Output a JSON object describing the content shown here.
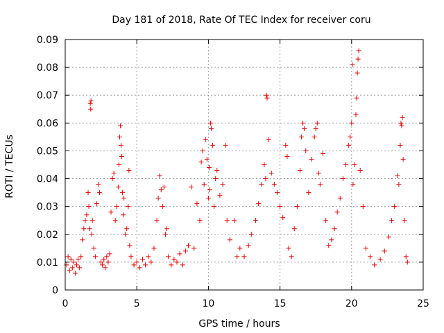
{
  "chart_data": {
    "type": "scatter",
    "title": "Day 181 of 2018, Rate Of TEC Index for receiver coru",
    "xlabel": "GPS time / hours",
    "ylabel": "ROTI / TECUs",
    "xlim": [
      0,
      25
    ],
    "ylim": [
      0,
      0.09
    ],
    "xticks": [
      0,
      5,
      10,
      15,
      20,
      25
    ],
    "xtick_labels": [
      "0",
      "5",
      "10",
      "15",
      "20",
      "25"
    ],
    "yticks": [
      0,
      0.01,
      0.02,
      0.03,
      0.04,
      0.05,
      0.06,
      0.07,
      0.08,
      0.09
    ],
    "ytick_labels": [
      "0",
      "0.01",
      "0.02",
      "0.03",
      "0.04",
      "0.05",
      "0.06",
      "0.07",
      "0.08",
      "0.09"
    ],
    "grid": true,
    "marker": "+",
    "color": "#e60000",
    "series": [
      {
        "name": "ROTI",
        "points": [
          [
            0.1,
            0.009
          ],
          [
            0.2,
            0.012
          ],
          [
            0.3,
            0.007
          ],
          [
            0.4,
            0.011
          ],
          [
            0.5,
            0.008
          ],
          [
            0.6,
            0.01
          ],
          [
            0.7,
            0.006
          ],
          [
            0.8,
            0.009
          ],
          [
            0.9,
            0.011
          ],
          [
            1.0,
            0.008
          ],
          [
            1.1,
            0.012
          ],
          [
            1.2,
            0.018
          ],
          [
            1.3,
            0.022
          ],
          [
            1.4,
            0.025
          ],
          [
            1.5,
            0.027
          ],
          [
            1.6,
            0.035
          ],
          [
            1.65,
            0.03
          ],
          [
            1.7,
            0.022
          ],
          [
            1.75,
            0.067
          ],
          [
            1.78,
            0.065
          ],
          [
            1.8,
            0.068
          ],
          [
            1.85,
            0.02
          ],
          [
            1.9,
            0.025
          ],
          [
            2.0,
            0.015
          ],
          [
            2.1,
            0.012
          ],
          [
            2.2,
            0.031
          ],
          [
            2.3,
            0.038
          ],
          [
            2.4,
            0.035
          ],
          [
            2.5,
            0.01
          ],
          [
            2.6,
            0.009
          ],
          [
            2.7,
            0.011
          ],
          [
            2.8,
            0.008
          ],
          [
            2.9,
            0.012
          ],
          [
            3.0,
            0.01
          ],
          [
            3.1,
            0.013
          ],
          [
            3.2,
            0.028
          ],
          [
            3.3,
            0.04
          ],
          [
            3.4,
            0.042
          ],
          [
            3.5,
            0.025
          ],
          [
            3.6,
            0.03
          ],
          [
            3.7,
            0.037
          ],
          [
            3.75,
            0.045
          ],
          [
            3.8,
            0.055
          ],
          [
            3.85,
            0.059
          ],
          [
            3.9,
            0.052
          ],
          [
            3.95,
            0.048
          ],
          [
            4.0,
            0.035
          ],
          [
            4.05,
            0.027
          ],
          [
            4.1,
            0.033
          ],
          [
            4.2,
            0.02
          ],
          [
            4.3,
            0.022
          ],
          [
            4.4,
            0.03
          ],
          [
            4.45,
            0.043
          ],
          [
            4.5,
            0.016
          ],
          [
            4.6,
            0.012
          ],
          [
            4.8,
            0.009
          ],
          [
            5.0,
            0.01
          ],
          [
            5.2,
            0.008
          ],
          [
            5.4,
            0.011
          ],
          [
            5.6,
            0.009
          ],
          [
            5.8,
            0.012
          ],
          [
            6.0,
            0.01
          ],
          [
            6.2,
            0.015
          ],
          [
            6.4,
            0.025
          ],
          [
            6.5,
            0.033
          ],
          [
            6.6,
            0.041
          ],
          [
            6.7,
            0.036
          ],
          [
            6.8,
            0.03
          ],
          [
            6.9,
            0.037
          ],
          [
            7.0,
            0.02
          ],
          [
            7.1,
            0.022
          ],
          [
            7.2,
            0.012
          ],
          [
            7.4,
            0.009
          ],
          [
            7.6,
            0.011
          ],
          [
            7.8,
            0.01
          ],
          [
            8.0,
            0.013
          ],
          [
            8.2,
            0.009
          ],
          [
            8.4,
            0.014
          ],
          [
            8.6,
            0.016
          ],
          [
            8.8,
            0.037
          ],
          [
            9.0,
            0.015
          ],
          [
            9.2,
            0.031
          ],
          [
            9.4,
            0.025
          ],
          [
            9.5,
            0.046
          ],
          [
            9.6,
            0.05
          ],
          [
            9.7,
            0.038
          ],
          [
            9.8,
            0.054
          ],
          [
            9.9,
            0.047
          ],
          [
            10.0,
            0.033
          ],
          [
            10.05,
            0.044
          ],
          [
            10.1,
            0.036
          ],
          [
            10.15,
            0.06
          ],
          [
            10.2,
            0.058
          ],
          [
            10.3,
            0.052
          ],
          [
            10.4,
            0.03
          ],
          [
            10.5,
            0.04
          ],
          [
            10.6,
            0.043
          ],
          [
            10.8,
            0.034
          ],
          [
            11.0,
            0.038
          ],
          [
            11.2,
            0.052
          ],
          [
            11.3,
            0.025
          ],
          [
            11.5,
            0.018
          ],
          [
            11.8,
            0.025
          ],
          [
            12.0,
            0.012
          ],
          [
            12.2,
            0.015
          ],
          [
            12.5,
            0.012
          ],
          [
            12.8,
            0.016
          ],
          [
            13.0,
            0.02
          ],
          [
            13.3,
            0.025
          ],
          [
            13.5,
            0.031
          ],
          [
            13.7,
            0.038
          ],
          [
            13.9,
            0.045
          ],
          [
            14.0,
            0.04
          ],
          [
            14.05,
            0.07
          ],
          [
            14.1,
            0.069
          ],
          [
            14.2,
            0.054
          ],
          [
            14.4,
            0.042
          ],
          [
            14.6,
            0.038
          ],
          [
            14.8,
            0.035
          ],
          [
            15.0,
            0.03
          ],
          [
            15.2,
            0.026
          ],
          [
            15.4,
            0.052
          ],
          [
            15.5,
            0.048
          ],
          [
            15.6,
            0.015
          ],
          [
            15.8,
            0.012
          ],
          [
            16.0,
            0.022
          ],
          [
            16.2,
            0.03
          ],
          [
            16.4,
            0.043
          ],
          [
            16.5,
            0.055
          ],
          [
            16.6,
            0.06
          ],
          [
            16.7,
            0.058
          ],
          [
            16.8,
            0.05
          ],
          [
            17.0,
            0.035
          ],
          [
            17.2,
            0.047
          ],
          [
            17.4,
            0.055
          ],
          [
            17.5,
            0.058
          ],
          [
            17.6,
            0.06
          ],
          [
            17.7,
            0.042
          ],
          [
            17.8,
            0.038
          ],
          [
            18.0,
            0.049
          ],
          [
            18.2,
            0.025
          ],
          [
            18.4,
            0.016
          ],
          [
            18.6,
            0.018
          ],
          [
            18.8,
            0.022
          ],
          [
            19.0,
            0.028
          ],
          [
            19.2,
            0.033
          ],
          [
            19.4,
            0.04
          ],
          [
            19.6,
            0.045
          ],
          [
            19.8,
            0.052
          ],
          [
            19.9,
            0.055
          ],
          [
            20.0,
            0.06
          ],
          [
            20.05,
            0.081
          ],
          [
            20.1,
            0.038
          ],
          [
            20.2,
            0.045
          ],
          [
            20.3,
            0.063
          ],
          [
            20.35,
            0.069
          ],
          [
            20.4,
            0.078
          ],
          [
            20.45,
            0.083
          ],
          [
            20.5,
            0.086
          ],
          [
            20.6,
            0.043
          ],
          [
            20.8,
            0.03
          ],
          [
            21.0,
            0.015
          ],
          [
            21.3,
            0.012
          ],
          [
            21.6,
            0.009
          ],
          [
            22.0,
            0.011
          ],
          [
            22.3,
            0.014
          ],
          [
            22.6,
            0.019
          ],
          [
            22.8,
            0.025
          ],
          [
            23.0,
            0.03
          ],
          [
            23.2,
            0.041
          ],
          [
            23.3,
            0.038
          ],
          [
            23.4,
            0.052
          ],
          [
            23.45,
            0.06
          ],
          [
            23.5,
            0.059
          ],
          [
            23.55,
            0.062
          ],
          [
            23.6,
            0.047
          ],
          [
            23.7,
            0.025
          ],
          [
            23.8,
            0.012
          ],
          [
            23.9,
            0.01
          ]
        ]
      }
    ]
  }
}
